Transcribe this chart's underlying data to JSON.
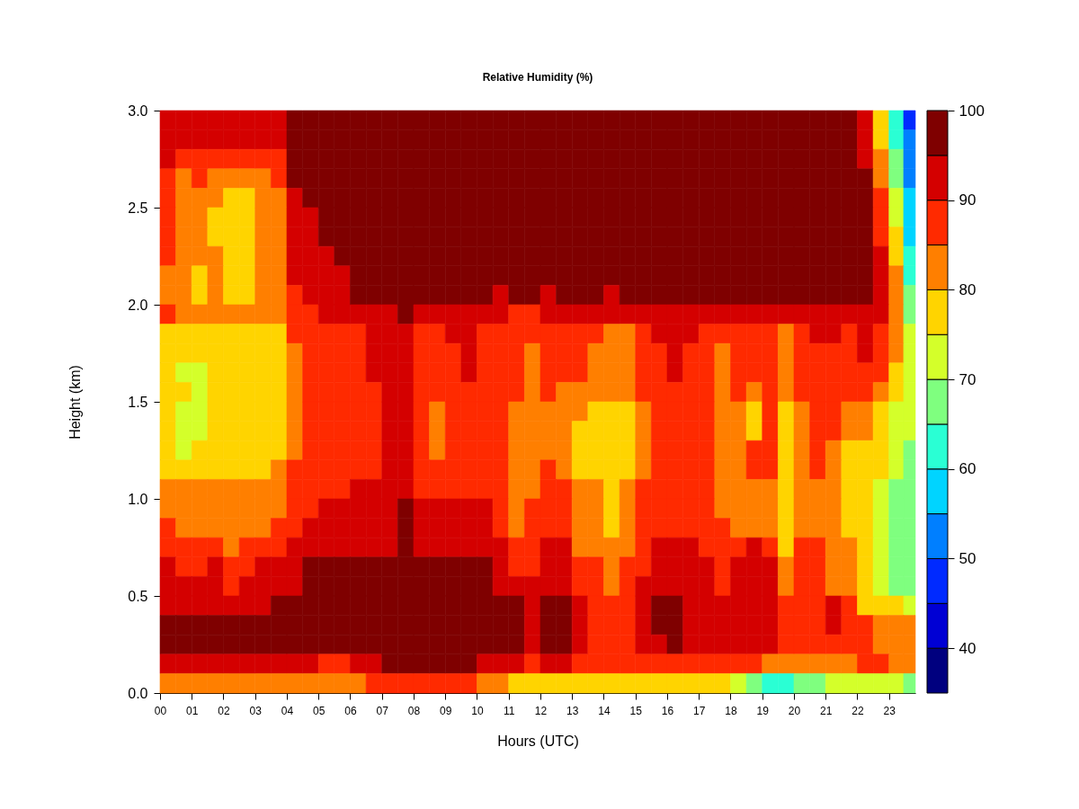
{
  "chart_data": {
    "type": "heatmap",
    "title": "Relative Humidity (%)",
    "xlabel": "Hours (UTC)",
    "ylabel": "Height (km)",
    "x": [
      0.25,
      0.75,
      1.25,
      1.75,
      2.25,
      2.75,
      3.25,
      3.75,
      4.25,
      4.75,
      5.25,
      5.75,
      6.25,
      6.75,
      7.25,
      7.75,
      8.25,
      8.75,
      9.25,
      9.75,
      10.25,
      10.75,
      11.25,
      11.75,
      12.25,
      12.75,
      13.25,
      13.75,
      14.25,
      14.75,
      15.25,
      15.75,
      16.25,
      16.75,
      17.25,
      17.75,
      18.25,
      18.75,
      19.25,
      19.75,
      20.25,
      20.75,
      21.25,
      21.75,
      22.25,
      22.75,
      23.25,
      23.67
    ],
    "y": [
      2.95,
      2.85,
      2.75,
      2.65,
      2.55,
      2.45,
      2.35,
      2.25,
      2.15,
      2.05,
      1.95,
      1.85,
      1.75,
      1.65,
      1.55,
      1.45,
      1.35,
      1.25,
      1.15,
      1.05,
      0.95,
      0.85,
      0.75,
      0.65,
      0.55,
      0.45,
      0.35,
      0.25,
      0.15,
      0.05
    ],
    "cells": [
      [
        92,
        92,
        91,
        91,
        91,
        91,
        92,
        93,
        97,
        97,
        97,
        97,
        97,
        97,
        97,
        97,
        97,
        97,
        97,
        97,
        97,
        97,
        97,
        97,
        97,
        97,
        97,
        97,
        97,
        97,
        97,
        97,
        97,
        97,
        97,
        97,
        97,
        97,
        97,
        97,
        97,
        97,
        97,
        97,
        92,
        75,
        60,
        48
      ],
      [
        92,
        91,
        90,
        90,
        90,
        91,
        91,
        92,
        97,
        97,
        97,
        97,
        97,
        97,
        97,
        97,
        97,
        97,
        97,
        97,
        97,
        97,
        97,
        97,
        97,
        97,
        97,
        97,
        97,
        97,
        97,
        97,
        97,
        97,
        97,
        97,
        97,
        97,
        97,
        97,
        97,
        97,
        97,
        97,
        93,
        77,
        62,
        50
      ],
      [
        91,
        88,
        88,
        87,
        87,
        87,
        87,
        89,
        97,
        97,
        97,
        97,
        97,
        97,
        97,
        97,
        97,
        97,
        97,
        97,
        97,
        97,
        97,
        97,
        97,
        97,
        97,
        97,
        97,
        97,
        97,
        97,
        97,
        97,
        97,
        97,
        97,
        97,
        97,
        97,
        97,
        97,
        97,
        97,
        94,
        80,
        65,
        52
      ],
      [
        88,
        84,
        85,
        84,
        83,
        83,
        82,
        85,
        95,
        97,
        97,
        97,
        97,
        97,
        97,
        97,
        97,
        97,
        97,
        97,
        97,
        97,
        97,
        97,
        97,
        97,
        97,
        97,
        97,
        97,
        97,
        97,
        97,
        97,
        97,
        97,
        97,
        96,
        97,
        97,
        97,
        97,
        97,
        97,
        95,
        84,
        68,
        54
      ],
      [
        87,
        82,
        81,
        80,
        79,
        79,
        80,
        82,
        92,
        96,
        97,
        97,
        97,
        97,
        97,
        97,
        97,
        97,
        97,
        97,
        97,
        97,
        97,
        97,
        97,
        97,
        97,
        97,
        97,
        97,
        97,
        97,
        97,
        97,
        97,
        97,
        97,
        95,
        97,
        97,
        97,
        97,
        97,
        97,
        96,
        85,
        70,
        56
      ],
      [
        87,
        82,
        80,
        79,
        79,
        78,
        80,
        81,
        92,
        94,
        97,
        97,
        97,
        97,
        97,
        97,
        97,
        97,
        97,
        97,
        97,
        97,
        97,
        97,
        97,
        97,
        97,
        97,
        97,
        97,
        97,
        97,
        97,
        97,
        97,
        97,
        97,
        95,
        97,
        97,
        97,
        97,
        97,
        97,
        96,
        86,
        73,
        57
      ],
      [
        86,
        81,
        80,
        79,
        78,
        78,
        80,
        81,
        92,
        93,
        97,
        97,
        97,
        97,
        97,
        97,
        97,
        97,
        97,
        97,
        97,
        97,
        97,
        97,
        97,
        97,
        97,
        97,
        97,
        97,
        97,
        97,
        97,
        97,
        97,
        97,
        97,
        95,
        97,
        97,
        97,
        97,
        97,
        97,
        96,
        88,
        76,
        59
      ],
      [
        85,
        80,
        80,
        80,
        79,
        78,
        81,
        82,
        92,
        92,
        94,
        97,
        97,
        97,
        97,
        97,
        97,
        97,
        97,
        97,
        97,
        97,
        97,
        97,
        97,
        97,
        97,
        97,
        97,
        97,
        97,
        97,
        97,
        97,
        97,
        97,
        97,
        95,
        97,
        97,
        97,
        97,
        97,
        97,
        97,
        90,
        78,
        61
      ],
      [
        84,
        80,
        79,
        80,
        79,
        79,
        80,
        82,
        91,
        92,
        92,
        94,
        97,
        97,
        97,
        97,
        97,
        97,
        97,
        97,
        97,
        96,
        97,
        97,
        97,
        97,
        97,
        97,
        96,
        97,
        97,
        97,
        97,
        97,
        97,
        97,
        97,
        96,
        97,
        97,
        97,
        97,
        97,
        97,
        97,
        91,
        80,
        63
      ],
      [
        84,
        80,
        79,
        80,
        79,
        79,
        80,
        82,
        89,
        90,
        91,
        92,
        95,
        97,
        97,
        97,
        96,
        96,
        96,
        96,
        95,
        94,
        95,
        95,
        94,
        95,
        95,
        95,
        94,
        95,
        95,
        96,
        96,
        96,
        95,
        95,
        95,
        95,
        95,
        95,
        95,
        95,
        96,
        96,
        97,
        92,
        81,
        66
      ],
      [
        85,
        83,
        82,
        82,
        81,
        81,
        81,
        82,
        87,
        88,
        90,
        91,
        92,
        93,
        94,
        95,
        93,
        92,
        94,
        94,
        93,
        92,
        89,
        89,
        90,
        91,
        92,
        91,
        90,
        91,
        92,
        93,
        93,
        93,
        92,
        92,
        92,
        92,
        92,
        91,
        92,
        93,
        93,
        94,
        94,
        90,
        82,
        68
      ],
      [
        78,
        76,
        76,
        77,
        77,
        77,
        78,
        79,
        85,
        87,
        88,
        89,
        89,
        90,
        91,
        92,
        89,
        88,
        90,
        90,
        89,
        89,
        86,
        85,
        87,
        87,
        86,
        85,
        83,
        84,
        89,
        90,
        90,
        90,
        88,
        85,
        87,
        86,
        87,
        84,
        89,
        90,
        90,
        89,
        91,
        87,
        81,
        70
      ],
      [
        77,
        75,
        75,
        77,
        77,
        76,
        77,
        79,
        84,
        87,
        88,
        89,
        89,
        90,
        91,
        92,
        88,
        87,
        89,
        90,
        89,
        88,
        85,
        84,
        86,
        86,
        85,
        84,
        82,
        83,
        88,
        89,
        90,
        89,
        88,
        84,
        86,
        85,
        87,
        83,
        89,
        89,
        89,
        87,
        90,
        86,
        80,
        71
      ],
      [
        77,
        74,
        74,
        76,
        77,
        76,
        77,
        78,
        84,
        87,
        88,
        89,
        89,
        90,
        91,
        92,
        88,
        87,
        89,
        90,
        89,
        88,
        85,
        84,
        85,
        85,
        85,
        83,
        81,
        82,
        88,
        89,
        90,
        89,
        88,
        84,
        86,
        85,
        86,
        82,
        88,
        89,
        89,
        86,
        89,
        85,
        78,
        72
      ],
      [
        77,
        75,
        74,
        76,
        77,
        77,
        78,
        79,
        84,
        87,
        88,
        88,
        89,
        89,
        91,
        92,
        88,
        87,
        88,
        89,
        89,
        88,
        85,
        84,
        85,
        84,
        84,
        82,
        80,
        81,
        87,
        88,
        89,
        88,
        87,
        83,
        85,
        84,
        86,
        82,
        88,
        88,
        88,
        85,
        88,
        84,
        76,
        72
      ],
      [
        77,
        74,
        74,
        77,
        77,
        77,
        78,
        79,
        84,
        86,
        88,
        88,
        88,
        89,
        90,
        93,
        86,
        84,
        86,
        88,
        87,
        85,
        80,
        82,
        84,
        83,
        80,
        79,
        77,
        78,
        84,
        87,
        88,
        88,
        87,
        83,
        81,
        79,
        86,
        79,
        80,
        87,
        86,
        80,
        80,
        75,
        72,
        72
      ],
      [
        77,
        74,
        74,
        77,
        77,
        76,
        78,
        79,
        84,
        86,
        88,
        88,
        88,
        89,
        90,
        93,
        85,
        83,
        86,
        88,
        87,
        85,
        80,
        82,
        84,
        83,
        79,
        78,
        77,
        77,
        84,
        87,
        88,
        88,
        87,
        83,
        81,
        79,
        86,
        79,
        80,
        87,
        86,
        80,
        80,
        75,
        71,
        72
      ],
      [
        76,
        74,
        75,
        77,
        77,
        77,
        78,
        79,
        84,
        86,
        88,
        88,
        88,
        89,
        90,
        92,
        85,
        83,
        86,
        88,
        87,
        85,
        80,
        82,
        84,
        83,
        78,
        78,
        77,
        77,
        83,
        86,
        87,
        87,
        86,
        81,
        82,
        85,
        85,
        77,
        82,
        86,
        83,
        77,
        79,
        75,
        70,
        69
      ],
      [
        78,
        77,
        77,
        78,
        78,
        78,
        78,
        80,
        85,
        87,
        88,
        89,
        89,
        89,
        90,
        92,
        86,
        85,
        87,
        88,
        87,
        85,
        81,
        82,
        85,
        84,
        78,
        77,
        77,
        78,
        82,
        86,
        87,
        87,
        86,
        81,
        82,
        85,
        85,
        77,
        82,
        86,
        83,
        77,
        79,
        75,
        70,
        69
      ],
      [
        80,
        80,
        80,
        80,
        80,
        80,
        81,
        81,
        86,
        88,
        89,
        89,
        90,
        90,
        92,
        94,
        87,
        87,
        88,
        89,
        88,
        86,
        82,
        83,
        85,
        85,
        81,
        80,
        78,
        80,
        86,
        87,
        88,
        88,
        87,
        84,
        84,
        84,
        81,
        77,
        84,
        83,
        82,
        79,
        77,
        73,
        68,
        66
      ],
      [
        84,
        83,
        82,
        83,
        81,
        82,
        83,
        84,
        87,
        89,
        90,
        91,
        91,
        92,
        93,
        95,
        90,
        90,
        91,
        92,
        90,
        88,
        84,
        85,
        86,
        86,
        81,
        80,
        78,
        80,
        87,
        87,
        89,
        89,
        87,
        84,
        84,
        84,
        81,
        77,
        84,
        83,
        82,
        79,
        77,
        73,
        68,
        66
      ],
      [
        85,
        83,
        83,
        84,
        82,
        83,
        84,
        85,
        88,
        90,
        91,
        92,
        92,
        92,
        93,
        96,
        91,
        91,
        92,
        92,
        91,
        88,
        84,
        85,
        87,
        87,
        82,
        81,
        78,
        81,
        87,
        88,
        89,
        89,
        88,
        85,
        84,
        84,
        82,
        78,
        84,
        83,
        82,
        79,
        77,
        73,
        68,
        66
      ],
      [
        86,
        86,
        85,
        86,
        84,
        85,
        86,
        87,
        90,
        91,
        92,
        93,
        93,
        94,
        94,
        96,
        92,
        92,
        93,
        93,
        92,
        90,
        86,
        86,
        90,
        91,
        84,
        84,
        80,
        84,
        88,
        90,
        91,
        90,
        89,
        87,
        89,
        90,
        89,
        79,
        85,
        86,
        84,
        82,
        77,
        74,
        67,
        66
      ],
      [
        90,
        89,
        89,
        90,
        88,
        89,
        90,
        91,
        93,
        95,
        95,
        96,
        96,
        97,
        97,
        97,
        96,
        96,
        96,
        96,
        96,
        93,
        89,
        89,
        92,
        92,
        85,
        85,
        80,
        85,
        89,
        90,
        91,
        91,
        90,
        88,
        90,
        91,
        90,
        80,
        86,
        87,
        84,
        82,
        77,
        74,
        67,
        66
      ],
      [
        91,
        90,
        90,
        90,
        89,
        90,
        91,
        93,
        94,
        96,
        96,
        96,
        97,
        97,
        97,
        97,
        97,
        97,
        97,
        97,
        96,
        94,
        90,
        90,
        93,
        93,
        86,
        85,
        81,
        86,
        90,
        91,
        92,
        92,
        90,
        89,
        91,
        91,
        90,
        80,
        86,
        87,
        84,
        82,
        77,
        74,
        67,
        66
      ],
      [
        94,
        93,
        93,
        94,
        92,
        93,
        94,
        95,
        96,
        97,
        97,
        97,
        97,
        97,
        97,
        97,
        97,
        97,
        97,
        97,
        97,
        97,
        95,
        91,
        95,
        96,
        90,
        88,
        86,
        89,
        93,
        95,
        95,
        93,
        94,
        92,
        93,
        93,
        93,
        87,
        87,
        89,
        90,
        87,
        79,
        77,
        76,
        74
      ],
      [
        97,
        97,
        96,
        96,
        96,
        96,
        97,
        97,
        97,
        97,
        97,
        97,
        97,
        97,
        97,
        97,
        97,
        97,
        97,
        97,
        97,
        97,
        96,
        93,
        96,
        96,
        91,
        89,
        87,
        89,
        93,
        95,
        96,
        94,
        94,
        93,
        93,
        93,
        93,
        87,
        87,
        89,
        90,
        87,
        87,
        84,
        84,
        82
      ],
      [
        97,
        97,
        97,
        97,
        97,
        97,
        97,
        97,
        97,
        97,
        97,
        97,
        97,
        97,
        97,
        97,
        97,
        97,
        97,
        97,
        97,
        97,
        96,
        94,
        96,
        96,
        91,
        89,
        87,
        89,
        92,
        94,
        95,
        93,
        93,
        92,
        93,
        92,
        92,
        86,
        87,
        89,
        89,
        87,
        87,
        84,
        84,
        82
      ],
      [
        93,
        92,
        92,
        93,
        93,
        93,
        93,
        93,
        91,
        91,
        89,
        89,
        90,
        91,
        96,
        96,
        96,
        96,
        96,
        95,
        93,
        92,
        92,
        88,
        91,
        90,
        87,
        87,
        86,
        86,
        89,
        89,
        88,
        88,
        87,
        87,
        85,
        85,
        83,
        82,
        82,
        82,
        83,
        83,
        86,
        86,
        83,
        80
      ],
      [
        81,
        80,
        81,
        81,
        80,
        80,
        81,
        81,
        80,
        80,
        81,
        81,
        84,
        85,
        87,
        87,
        87,
        87,
        86,
        85,
        83,
        80,
        79,
        78,
        79,
        79,
        77,
        77,
        76,
        76,
        76,
        76,
        76,
        76,
        75,
        75,
        72,
        67,
        64,
        63,
        65,
        67,
        70,
        72,
        73,
        72,
        71,
        68
      ]
    ],
    "colors": [
      "#00007F",
      "#0000D4",
      "#002AFF",
      "#007FFF",
      "#00D4FF",
      "#2AFFD4",
      "#7FFF7F",
      "#D4FF2A",
      "#FFD400",
      "#FF7F00",
      "#FF2A00",
      "#D40000",
      "#7F0000"
    ],
    "clim": [
      35,
      100
    ],
    "cticks": [
      40,
      50,
      60,
      70,
      80,
      90,
      100
    ],
    "xlim": [
      0,
      23.83
    ],
    "xticks": [
      {
        "value": 0,
        "label": "00"
      },
      {
        "value": 1,
        "label": "01"
      },
      {
        "value": 2,
        "label": "02"
      },
      {
        "value": 3,
        "label": "03"
      },
      {
        "value": 4,
        "label": "04"
      },
      {
        "value": 5,
        "label": "05"
      },
      {
        "value": 6,
        "label": "06"
      },
      {
        "value": 7,
        "label": "07"
      },
      {
        "value": 8,
        "label": "08"
      },
      {
        "value": 9,
        "label": "09"
      },
      {
        "value": 10,
        "label": "10"
      },
      {
        "value": 11,
        "label": "11"
      },
      {
        "value": 12,
        "label": "12"
      },
      {
        "value": 13,
        "label": "13"
      },
      {
        "value": 14,
        "label": "14"
      },
      {
        "value": 15,
        "label": "15"
      },
      {
        "value": 16,
        "label": "16"
      },
      {
        "value": 17,
        "label": "17"
      },
      {
        "value": 18,
        "label": "18"
      },
      {
        "value": 19,
        "label": "19"
      },
      {
        "value": 20,
        "label": "20"
      },
      {
        "value": 21,
        "label": "21"
      },
      {
        "value": 22,
        "label": "22"
      },
      {
        "value": 23,
        "label": "23"
      }
    ],
    "ylim": [
      0,
      3
    ],
    "yticks": [
      {
        "value": 0,
        "label": "0.0"
      },
      0.5,
      {
        "value": 1,
        "label": "1.0"
      },
      1.5,
      {
        "value": 2,
        "label": "2.0"
      },
      2.5,
      {
        "value": 3,
        "label": "3.0"
      }
    ]
  }
}
